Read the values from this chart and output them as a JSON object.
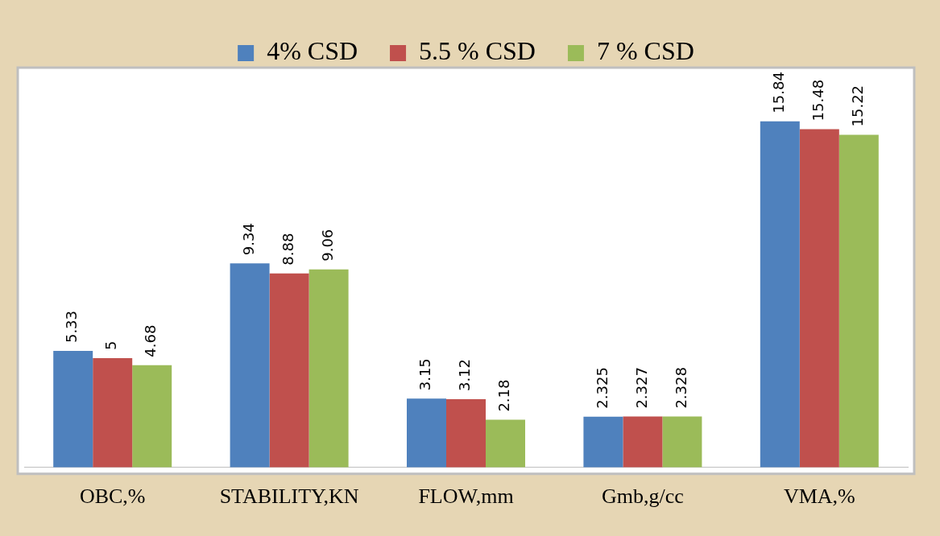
{
  "chart_data": {
    "type": "bar",
    "categories": [
      "OBC,%",
      "STABILITY,KN",
      "FLOW,mm",
      "Gmb,g/cc",
      "VMA,%"
    ],
    "series": [
      {
        "name": "4% CSD",
        "color": "#4f81bd",
        "values": [
          5.33,
          9.34,
          3.15,
          2.325,
          15.84
        ]
      },
      {
        "name": "5.5 % CSD",
        "color": "#c0504d",
        "values": [
          5,
          8.88,
          3.12,
          2.327,
          15.48
        ]
      },
      {
        "name": "7 % CSD",
        "color": "#9bbb59",
        "values": [
          4.68,
          9.06,
          2.18,
          2.328,
          15.22
        ]
      }
    ],
    "data_labels": true,
    "legend": "top"
  }
}
